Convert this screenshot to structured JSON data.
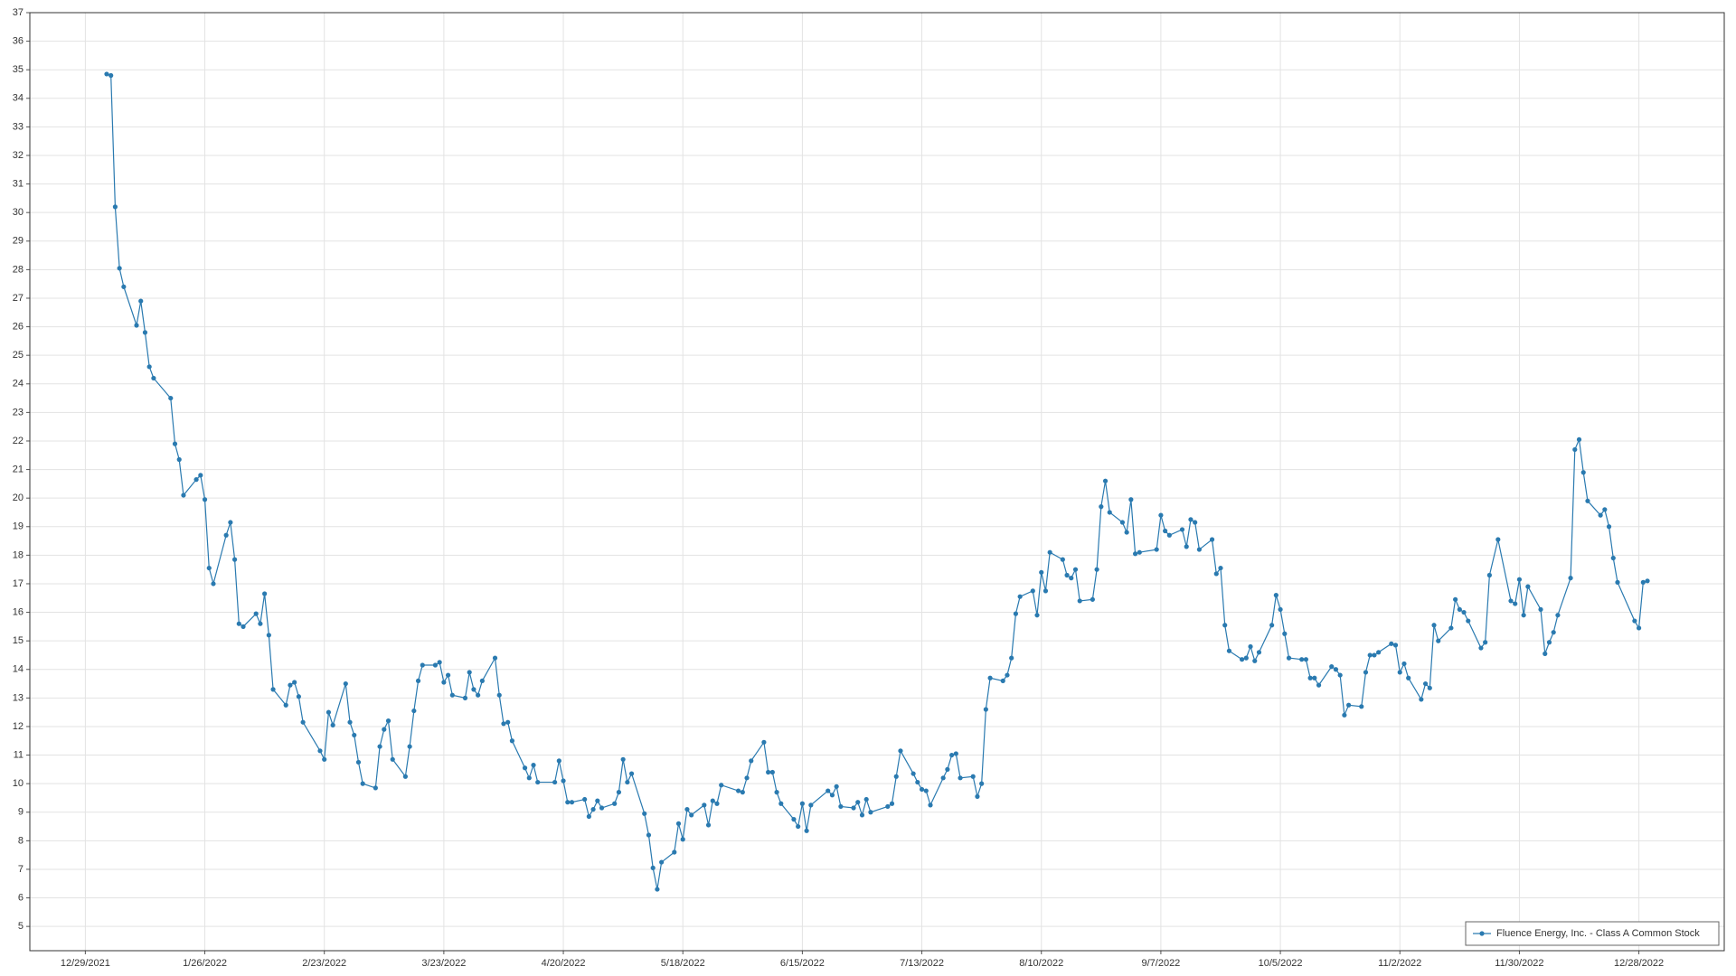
{
  "chart_data": {
    "type": "line",
    "series": [
      {
        "name": "Fluence Energy, Inc. - Class A Common Stock",
        "color": "#2a7ab0",
        "x": [
          "1/3/2022",
          "1/4/2022",
          "1/5/2022",
          "1/6/2022",
          "1/7/2022",
          "1/10/2022",
          "1/11/2022",
          "1/12/2022",
          "1/13/2022",
          "1/14/2022",
          "1/18/2022",
          "1/19/2022",
          "1/20/2022",
          "1/21/2022",
          "1/24/2022",
          "1/25/2022",
          "1/26/2022",
          "1/27/2022",
          "1/28/2022",
          "1/31/2022",
          "2/1/2022",
          "2/2/2022",
          "2/3/2022",
          "2/4/2022",
          "2/7/2022",
          "2/8/2022",
          "2/9/2022",
          "2/10/2022",
          "2/11/2022",
          "2/14/2022",
          "2/15/2022",
          "2/16/2022",
          "2/17/2022",
          "2/18/2022",
          "2/22/2022",
          "2/23/2022",
          "2/24/2022",
          "2/25/2022",
          "2/28/2022",
          "3/1/2022",
          "3/2/2022",
          "3/3/2022",
          "3/4/2022",
          "3/7/2022",
          "3/8/2022",
          "3/9/2022",
          "3/10/2022",
          "3/11/2022",
          "3/14/2022",
          "3/15/2022",
          "3/16/2022",
          "3/17/2022",
          "3/18/2022",
          "3/21/2022",
          "3/22/2022",
          "3/23/2022",
          "3/24/2022",
          "3/25/2022",
          "3/28/2022",
          "3/29/2022",
          "3/30/2022",
          "3/31/2022",
          "4/1/2022",
          "4/4/2022",
          "4/5/2022",
          "4/6/2022",
          "4/7/2022",
          "4/8/2022",
          "4/11/2022",
          "4/12/2022",
          "4/13/2022",
          "4/14/2022",
          "4/18/2022",
          "4/19/2022",
          "4/20/2022",
          "4/21/2022",
          "4/22/2022",
          "4/25/2022",
          "4/26/2022",
          "4/27/2022",
          "4/28/2022",
          "4/29/2022",
          "5/2/2022",
          "5/3/2022",
          "5/4/2022",
          "5/5/2022",
          "5/6/2022",
          "5/9/2022",
          "5/10/2022",
          "5/11/2022",
          "5/12/2022",
          "5/13/2022",
          "5/16/2022",
          "5/17/2022",
          "5/18/2022",
          "5/19/2022",
          "5/20/2022",
          "5/23/2022",
          "5/24/2022",
          "5/25/2022",
          "5/26/2022",
          "5/27/2022",
          "5/31/2022",
          "6/1/2022",
          "6/2/2022",
          "6/3/2022",
          "6/6/2022",
          "6/7/2022",
          "6/8/2022",
          "6/9/2022",
          "6/10/2022",
          "6/13/2022",
          "6/14/2022",
          "6/15/2022",
          "6/16/2022",
          "6/17/2022",
          "6/21/2022",
          "6/22/2022",
          "6/23/2022",
          "6/24/2022",
          "6/27/2022",
          "6/28/2022",
          "6/29/2022",
          "6/30/2022",
          "7/1/2022",
          "7/5/2022",
          "7/6/2022",
          "7/7/2022",
          "7/8/2022",
          "7/11/2022",
          "7/12/2022",
          "7/13/2022",
          "7/14/2022",
          "7/15/2022",
          "7/18/2022",
          "7/19/2022",
          "7/20/2022",
          "7/21/2022",
          "7/22/2022",
          "7/25/2022",
          "7/26/2022",
          "7/27/2022",
          "7/28/2022",
          "7/29/2022",
          "8/1/2022",
          "8/2/2022",
          "8/3/2022",
          "8/4/2022",
          "8/5/2022",
          "8/8/2022",
          "8/9/2022",
          "8/10/2022",
          "8/11/2022",
          "8/12/2022",
          "8/15/2022",
          "8/16/2022",
          "8/17/2022",
          "8/18/2022",
          "8/19/2022",
          "8/22/2022",
          "8/23/2022",
          "8/24/2022",
          "8/25/2022",
          "8/26/2022",
          "8/29/2022",
          "8/30/2022",
          "8/31/2022",
          "9/1/2022",
          "9/2/2022",
          "9/6/2022",
          "9/7/2022",
          "9/8/2022",
          "9/9/2022",
          "9/12/2022",
          "9/13/2022",
          "9/14/2022",
          "9/15/2022",
          "9/16/2022",
          "9/19/2022",
          "9/20/2022",
          "9/21/2022",
          "9/22/2022",
          "9/23/2022",
          "9/26/2022",
          "9/27/2022",
          "9/28/2022",
          "9/29/2022",
          "9/30/2022",
          "10/3/2022",
          "10/4/2022",
          "10/5/2022",
          "10/6/2022",
          "10/7/2022",
          "10/10/2022",
          "10/11/2022",
          "10/12/2022",
          "10/13/2022",
          "10/14/2022",
          "10/17/2022",
          "10/18/2022",
          "10/19/2022",
          "10/20/2022",
          "10/21/2022",
          "10/24/2022",
          "10/25/2022",
          "10/26/2022",
          "10/27/2022",
          "10/28/2022",
          "10/31/2022",
          "11/1/2022",
          "11/2/2022",
          "11/3/2022",
          "11/4/2022",
          "11/7/2022",
          "11/8/2022",
          "11/9/2022",
          "11/10/2022",
          "11/11/2022",
          "11/14/2022",
          "11/15/2022",
          "11/16/2022",
          "11/17/2022",
          "11/18/2022",
          "11/21/2022",
          "11/22/2022",
          "11/23/2022",
          "11/25/2022",
          "11/28/2022",
          "11/29/2022",
          "11/30/2022",
          "12/1/2022",
          "12/2/2022",
          "12/5/2022",
          "12/6/2022",
          "12/7/2022",
          "12/8/2022",
          "12/9/2022",
          "12/12/2022",
          "12/13/2022",
          "12/14/2022",
          "12/15/2022",
          "12/16/2022",
          "12/19/2022",
          "12/20/2022",
          "12/21/2022",
          "12/22/2022",
          "12/23/2022",
          "12/27/2022",
          "12/28/2022",
          "12/29/2022",
          "12/30/2022"
        ],
        "values": [
          34.85,
          34.8,
          30.2,
          28.05,
          27.4,
          26.05,
          26.9,
          25.8,
          24.6,
          24.2,
          23.5,
          21.9,
          21.35,
          20.1,
          20.65,
          20.8,
          19.95,
          17.55,
          17.0,
          18.7,
          19.15,
          17.85,
          15.6,
          15.5,
          15.95,
          15.6,
          16.65,
          15.2,
          13.3,
          12.75,
          13.45,
          13.55,
          13.05,
          12.15,
          11.15,
          10.85,
          12.5,
          12.05,
          13.5,
          12.15,
          11.7,
          10.75,
          10.0,
          9.85,
          11.3,
          11.9,
          12.2,
          10.85,
          10.25,
          11.3,
          12.55,
          13.6,
          14.15,
          14.15,
          14.25,
          13.55,
          13.8,
          13.1,
          13.0,
          13.9,
          13.3,
          13.1,
          13.6,
          14.4,
          13.1,
          12.1,
          12.15,
          11.5,
          10.55,
          10.2,
          10.65,
          10.05,
          10.05,
          10.8,
          10.1,
          9.35,
          9.35,
          9.45,
          8.85,
          9.1,
          9.4,
          9.15,
          9.3,
          9.7,
          10.85,
          10.05,
          10.35,
          8.95,
          8.2,
          7.05,
          6.3,
          7.25,
          7.6,
          8.6,
          8.05,
          9.1,
          8.9,
          9.25,
          8.55,
          9.4,
          9.3,
          9.95,
          9.75,
          9.7,
          10.2,
          10.8,
          11.45,
          10.4,
          10.4,
          9.7,
          9.3,
          8.75,
          8.5,
          9.3,
          8.35,
          9.25,
          9.75,
          9.6,
          9.9,
          9.2,
          9.15,
          9.35,
          8.9,
          9.45,
          9.0,
          9.2,
          9.3,
          10.25,
          11.15,
          10.35,
          10.05,
          9.8,
          9.75,
          9.25,
          10.2,
          10.5,
          11.0,
          11.05,
          10.2,
          10.25,
          9.55,
          10.0,
          12.6,
          13.7,
          13.6,
          13.8,
          14.4,
          15.95,
          16.55,
          16.75,
          15.9,
          17.4,
          16.75,
          18.1,
          17.85,
          17.3,
          17.2,
          17.5,
          16.4,
          16.45,
          17.5,
          19.7,
          20.6,
          19.5,
          19.15,
          18.8,
          19.95,
          18.05,
          18.1,
          18.2,
          19.4,
          18.85,
          18.7,
          18.9,
          18.3,
          19.25,
          19.15,
          18.2,
          18.55,
          17.35,
          17.55,
          15.55,
          14.65,
          14.35,
          14.4,
          14.8,
          14.3,
          14.6,
          15.55,
          16.6,
          16.1,
          15.25,
          14.4,
          14.35,
          14.35,
          13.7,
          13.7,
          13.45,
          14.1,
          14.0,
          13.8,
          12.4,
          12.75,
          12.7,
          13.9,
          14.5,
          14.5,
          14.6,
          14.9,
          14.85,
          13.9,
          14.2,
          13.7,
          12.95,
          13.5,
          13.35,
          15.55,
          15.0,
          15.45,
          16.45,
          16.1,
          16.0,
          15.7,
          14.75,
          14.95,
          17.3,
          18.55,
          16.4,
          16.3,
          17.15,
          15.9,
          16.9,
          16.1,
          14.55,
          14.95,
          15.3,
          15.9,
          17.2,
          21.7,
          22.05,
          20.9,
          19.9,
          19.4,
          19.6,
          19.0,
          17.9,
          17.05,
          15.7,
          15.45,
          17.05,
          17.1
        ]
      }
    ],
    "xlim": [
      "12/16/2021",
      "1/17/2023"
    ],
    "xticks": [
      "12/29/2021",
      "1/26/2022",
      "2/23/2022",
      "3/23/2022",
      "4/20/2022",
      "5/18/2022",
      "6/15/2022",
      "7/13/2022",
      "8/10/2022",
      "9/7/2022",
      "10/5/2022",
      "11/2/2022",
      "11/30/2022",
      "12/28/2022"
    ],
    "ylim": [
      4.15,
      37
    ],
    "yticks": [
      5,
      6,
      7,
      8,
      9,
      10,
      11,
      12,
      13,
      14,
      15,
      16,
      17,
      18,
      19,
      20,
      21,
      22,
      23,
      24,
      25,
      26,
      27,
      28,
      29,
      30,
      31,
      32,
      33,
      34,
      35,
      36,
      37
    ],
    "grid": true,
    "legend": "lower right",
    "markers": true
  }
}
